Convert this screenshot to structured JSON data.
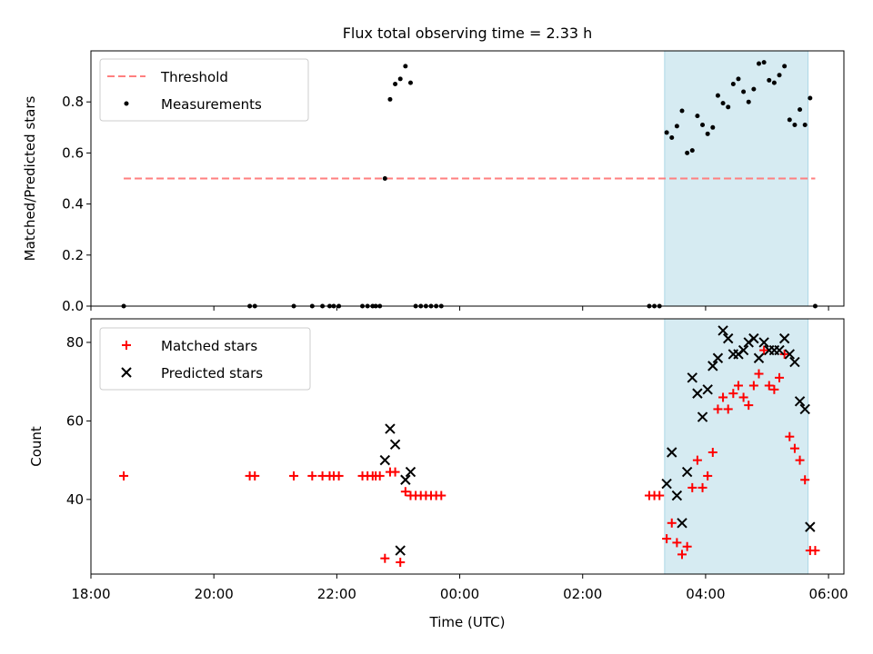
{
  "title": "Flux total observing time = 2.33 h",
  "xlabel": "Time (UTC)",
  "xticks": [
    "18:00",
    "20:00",
    "22:00",
    "00:00",
    "02:00",
    "04:00",
    "06:00"
  ],
  "colors": {
    "threshold": "#ff7f7f",
    "measurements": "#000000",
    "matched": "#ff0000",
    "predicted": "#000000",
    "shade": "#add8e6"
  },
  "chart_data": [
    {
      "type": "scatter",
      "name": "top",
      "ylabel": "Matched/Predicted stars",
      "xlim": [
        "18:00",
        "06:15"
      ],
      "ylim": [
        0,
        1.0
      ],
      "yticks": [
        "0.0",
        "0.2",
        "0.4",
        "0.6",
        "0.8"
      ],
      "ytick_values": [
        0,
        0.2,
        0.4,
        0.6,
        0.8
      ],
      "shaded_interval": [
        "03:20",
        "05:40"
      ],
      "legend_position": "upper left",
      "threshold": {
        "name": "Threshold",
        "value": 0.5,
        "x_range": [
          "18:32",
          "05:47"
        ]
      },
      "series": [
        {
          "name": "Measurements",
          "points": [
            [
              "18:32",
              0
            ],
            [
              "20:35",
              0
            ],
            [
              "20:40",
              0
            ],
            [
              "21:18",
              0
            ],
            [
              "21:36",
              0
            ],
            [
              "21:46",
              0
            ],
            [
              "21:53",
              0
            ],
            [
              "21:57",
              0
            ],
            [
              "22:02",
              0
            ],
            [
              "22:25",
              0
            ],
            [
              "22:30",
              0
            ],
            [
              "22:35",
              0
            ],
            [
              "22:38",
              0
            ],
            [
              "22:42",
              0
            ],
            [
              "22:47",
              0.5
            ],
            [
              "22:52",
              0.81
            ],
            [
              "22:57",
              0.87
            ],
            [
              "23:02",
              0.89
            ],
            [
              "23:07",
              0.94
            ],
            [
              "23:12",
              0.875
            ],
            [
              "23:17",
              0
            ],
            [
              "23:22",
              0
            ],
            [
              "23:27",
              0
            ],
            [
              "23:32",
              0
            ],
            [
              "23:37",
              0
            ],
            [
              "23:42",
              0
            ],
            [
              "03:05",
              0
            ],
            [
              "03:10",
              0
            ],
            [
              "03:15",
              0
            ],
            [
              "03:22",
              0.68
            ],
            [
              "03:27",
              0.66
            ],
            [
              "03:32",
              0.705
            ],
            [
              "03:37",
              0.765
            ],
            [
              "03:42",
              0.6
            ],
            [
              "03:47",
              0.61
            ],
            [
              "03:52",
              0.745
            ],
            [
              "03:57",
              0.71
            ],
            [
              "04:02",
              0.675
            ],
            [
              "04:07",
              0.7
            ],
            [
              "04:12",
              0.825
            ],
            [
              "04:17",
              0.795
            ],
            [
              "04:22",
              0.78
            ],
            [
              "04:27",
              0.87
            ],
            [
              "04:32",
              0.89
            ],
            [
              "04:37",
              0.84
            ],
            [
              "04:42",
              0.8
            ],
            [
              "04:47",
              0.85
            ],
            [
              "04:52",
              0.95
            ],
            [
              "04:57",
              0.955
            ],
            [
              "05:02",
              0.885
            ],
            [
              "05:07",
              0.875
            ],
            [
              "05:12",
              0.905
            ],
            [
              "05:17",
              0.94
            ],
            [
              "05:22",
              0.73
            ],
            [
              "05:27",
              0.71
            ],
            [
              "05:32",
              0.77
            ],
            [
              "05:37",
              0.71
            ],
            [
              "05:42",
              0.815
            ],
            [
              "05:47",
              0
            ]
          ]
        }
      ]
    },
    {
      "type": "scatter",
      "name": "bottom",
      "ylabel": "Count",
      "xlim": [
        "18:00",
        "06:15"
      ],
      "ylim": [
        21,
        86
      ],
      "yticks": [
        "40",
        "60",
        "80"
      ],
      "ytick_values": [
        40,
        60,
        80
      ],
      "shaded_interval": [
        "03:20",
        "05:40"
      ],
      "legend_position": "upper left",
      "series": [
        {
          "name": "Matched stars",
          "marker": "plus",
          "points": [
            [
              "18:32",
              46
            ],
            [
              "20:35",
              46
            ],
            [
              "20:40",
              46
            ],
            [
              "21:18",
              46
            ],
            [
              "21:36",
              46
            ],
            [
              "21:46",
              46
            ],
            [
              "21:53",
              46
            ],
            [
              "21:57",
              46
            ],
            [
              "22:02",
              46
            ],
            [
              "22:25",
              46
            ],
            [
              "22:30",
              46
            ],
            [
              "22:35",
              46
            ],
            [
              "22:38",
              46
            ],
            [
              "22:42",
              46
            ],
            [
              "22:47",
              25
            ],
            [
              "22:52",
              47
            ],
            [
              "22:57",
              47
            ],
            [
              "23:02",
              24
            ],
            [
              "23:07",
              42
            ],
            [
              "23:12",
              41
            ],
            [
              "23:17",
              41
            ],
            [
              "23:22",
              41
            ],
            [
              "23:27",
              41
            ],
            [
              "23:32",
              41
            ],
            [
              "23:37",
              41
            ],
            [
              "23:42",
              41
            ],
            [
              "03:05",
              41
            ],
            [
              "03:10",
              41
            ],
            [
              "03:15",
              41
            ],
            [
              "03:22",
              30
            ],
            [
              "03:27",
              34
            ],
            [
              "03:32",
              29
            ],
            [
              "03:37",
              26
            ],
            [
              "03:42",
              28
            ],
            [
              "03:47",
              43
            ],
            [
              "03:52",
              50
            ],
            [
              "03:57",
              43
            ],
            [
              "04:02",
              46
            ],
            [
              "04:07",
              52
            ],
            [
              "04:12",
              63
            ],
            [
              "04:17",
              66
            ],
            [
              "04:22",
              63
            ],
            [
              "04:27",
              67
            ],
            [
              "04:32",
              69
            ],
            [
              "04:37",
              66
            ],
            [
              "04:42",
              64
            ],
            [
              "04:47",
              69
            ],
            [
              "04:52",
              72
            ],
            [
              "04:57",
              78
            ],
            [
              "05:02",
              69
            ],
            [
              "05:07",
              68
            ],
            [
              "05:12",
              71
            ],
            [
              "05:17",
              77
            ],
            [
              "05:22",
              56
            ],
            [
              "05:27",
              53
            ],
            [
              "05:32",
              50
            ],
            [
              "05:37",
              45
            ],
            [
              "05:42",
              27
            ],
            [
              "05:47",
              27
            ]
          ]
        },
        {
          "name": "Predicted stars",
          "marker": "x",
          "points": [
            [
              "22:47",
              50
            ],
            [
              "22:52",
              58
            ],
            [
              "22:57",
              54
            ],
            [
              "23:02",
              27
            ],
            [
              "23:07",
              45
            ],
            [
              "23:12",
              47
            ],
            [
              "03:22",
              44
            ],
            [
              "03:27",
              52
            ],
            [
              "03:32",
              41
            ],
            [
              "03:37",
              34
            ],
            [
              "03:42",
              47
            ],
            [
              "03:47",
              71
            ],
            [
              "03:52",
              67
            ],
            [
              "03:57",
              61
            ],
            [
              "04:02",
              68
            ],
            [
              "04:07",
              74
            ],
            [
              "04:12",
              76
            ],
            [
              "04:17",
              83
            ],
            [
              "04:22",
              81
            ],
            [
              "04:27",
              77
            ],
            [
              "04:32",
              77
            ],
            [
              "04:37",
              78
            ],
            [
              "04:42",
              80
            ],
            [
              "04:47",
              81
            ],
            [
              "04:52",
              76
            ],
            [
              "04:57",
              80
            ],
            [
              "05:02",
              78
            ],
            [
              "05:07",
              78
            ],
            [
              "05:12",
              78
            ],
            [
              "05:17",
              81
            ],
            [
              "05:22",
              77
            ],
            [
              "05:27",
              75
            ],
            [
              "05:32",
              65
            ],
            [
              "05:37",
              63
            ],
            [
              "05:42",
              33
            ]
          ]
        }
      ]
    }
  ]
}
